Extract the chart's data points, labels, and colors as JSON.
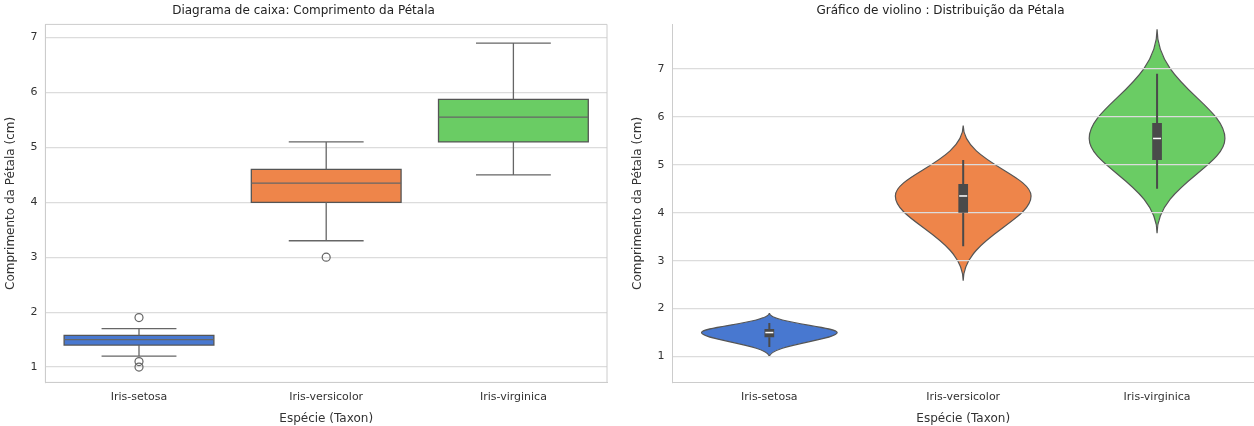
{
  "chart_data": [
    {
      "type": "box",
      "title": "Diagrama de caixa: Comprimento da Pétala",
      "xlabel": "Espécie (Taxon)",
      "ylabel": "Comprimento da Pétala (cm)",
      "categories": [
        "Iris-setosa",
        "Iris-versicolor",
        "Iris-virginica"
      ],
      "colors": [
        "#4878d0",
        "#ee854a",
        "#6acc64"
      ],
      "boxes": [
        {
          "low": 1.2,
          "q1": 1.4,
          "median": 1.5,
          "q3": 1.575,
          "high": 1.7,
          "outliers": [
            1.0,
            1.1,
            1.9
          ]
        },
        {
          "low": 3.3,
          "q1": 4.0,
          "median": 4.35,
          "q3": 4.6,
          "high": 5.1,
          "outliers": [
            3.0
          ]
        },
        {
          "low": 4.5,
          "q1": 5.1,
          "median": 5.55,
          "q3": 5.875,
          "high": 6.9
        }
      ],
      "ylim": [
        0.72,
        7.24
      ],
      "yticks": [
        1,
        2,
        3,
        4,
        5,
        6,
        7
      ],
      "grid": "y",
      "legend": false
    },
    {
      "type": "box",
      "title": "Gráfico de violino : Distribuição da Pétala",
      "xlabel": "Espécie (Taxon)",
      "ylabel": "Comprimento da Pétala (cm)",
      "categories": [
        "Iris-setosa",
        "Iris-versicolor",
        "Iris-virginica"
      ],
      "colors": [
        "#4878d0",
        "#ee854a",
        "#6acc64"
      ],
      "series": [
        {
          "color": "#4a4a4a",
          "boxes": [
            {
              "low": 1.2,
              "q1": 1.4,
              "median": 1.5,
              "q3": 1.575,
              "high": 1.7
            },
            {
              "low": 3.3,
              "q1": 4.0,
              "median": 4.35,
              "q3": 4.6,
              "high": 5.1
            },
            {
              "low": 4.5,
              "q1": 5.1,
              "median": 5.55,
              "q3": 5.875,
              "high": 6.9
            }
          ]
        }
      ],
      "ylim": [
        0.46,
        7.93
      ],
      "yticks": [
        1,
        2,
        3,
        4,
        5,
        6,
        7
      ],
      "grid": "y",
      "legend": false
    }
  ]
}
